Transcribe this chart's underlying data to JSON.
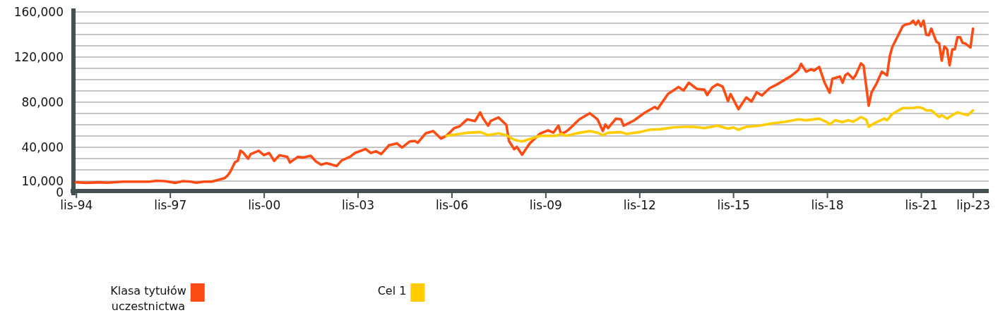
{
  "chart_data": {
    "type": "line",
    "xlim": [
      "1994-10",
      "2024-01"
    ],
    "ylim": [
      0,
      160000
    ],
    "xticks": [
      {
        "value": "1994-11",
        "label": "lis-94"
      },
      {
        "value": "1997-11",
        "label": "lis-97"
      },
      {
        "value": "2000-11",
        "label": "lis-00"
      },
      {
        "value": "2003-11",
        "label": "lis-03"
      },
      {
        "value": "2006-11",
        "label": "lis-06"
      },
      {
        "value": "2009-11",
        "label": "lis-09"
      },
      {
        "value": "2012-11",
        "label": "lis-12"
      },
      {
        "value": "2015-11",
        "label": "lis-15"
      },
      {
        "value": "2018-11",
        "label": "lis-18"
      },
      {
        "value": "2021-11",
        "label": "lis-21"
      },
      {
        "value": "2023-07",
        "label": "lip-23"
      }
    ],
    "yticks": [
      0,
      {
        "value": 10000,
        "label": "10,000"
      },
      {
        "value": 20000,
        "label": null
      },
      {
        "value": 30000,
        "label": null
      },
      {
        "value": 40000,
        "label": "40,000"
      },
      {
        "value": 50000,
        "label": null
      },
      {
        "value": 60000,
        "label": null
      },
      {
        "value": 70000,
        "label": null
      },
      {
        "value": 80000,
        "label": "80,000"
      },
      {
        "value": 90000,
        "label": null
      },
      {
        "value": 100000,
        "label": null
      },
      {
        "value": 110000,
        "label": null
      },
      {
        "value": 120000,
        "label": "120,000"
      },
      {
        "value": 130000,
        "label": null
      },
      {
        "value": 140000,
        "label": null
      },
      {
        "value": 150000,
        "label": null
      },
      {
        "value": 160000,
        "label": "160,000"
      }
    ],
    "grid": "y",
    "legend": "bottom",
    "line_style": "solid",
    "marker": "none",
    "series": [
      {
        "name": "Klasa tytułów uczestnictwa",
        "color": "#fc4c14",
        "x": [
          "1994-11",
          "1995-03",
          "1995-08",
          "1995-11",
          "1996-05",
          "1997-03",
          "1997-06",
          "1997-09",
          "1998-01",
          "1998-04",
          "1998-07",
          "1998-09",
          "1998-12",
          "1999-03",
          "1999-08",
          "1999-09",
          "1999-10",
          "1999-12",
          "2000-01",
          "2000-02",
          "2000-03",
          "2000-05",
          "2000-06",
          "2000-09",
          "2000-11",
          "2001-01",
          "2001-03",
          "2001-05",
          "2001-08",
          "2001-09",
          "2001-12",
          "2002-02",
          "2002-05",
          "2002-07",
          "2002-09",
          "2002-11",
          "2003-03",
          "2003-05",
          "2003-08",
          "2003-10",
          "2004-02",
          "2004-04",
          "2004-06",
          "2004-08",
          "2004-11",
          "2005-02",
          "2005-04",
          "2005-07",
          "2005-09",
          "2005-10",
          "2006-01",
          "2006-04",
          "2006-06",
          "2006-07",
          "2006-09",
          "2006-12",
          "2007-02",
          "2007-05",
          "2007-08",
          "2007-10",
          "2007-11",
          "2008-01",
          "2008-02",
          "2008-05",
          "2008-08",
          "2008-09",
          "2008-11",
          "2008-12",
          "2009-02",
          "2009-05",
          "2009-09",
          "2009-12",
          "2010-02",
          "2010-04",
          "2010-05",
          "2010-07",
          "2010-09",
          "2010-12",
          "2011-04",
          "2011-07",
          "2011-09",
          "2011-10",
          "2011-11",
          "2012-02",
          "2012-04",
          "2012-05",
          "2012-09",
          "2013-01",
          "2013-05",
          "2013-06",
          "2013-10",
          "2014-02",
          "2014-04",
          "2014-06",
          "2014-09",
          "2014-12",
          "2015-01",
          "2015-03",
          "2015-05",
          "2015-07",
          "2015-09",
          "2015-10",
          "2016-01",
          "2016-04",
          "2016-06",
          "2016-08",
          "2016-10",
          "2017-01",
          "2017-04",
          "2017-07",
          "2017-09",
          "2017-12",
          "2018-01",
          "2018-03",
          "2018-05",
          "2018-06",
          "2018-08",
          "2018-10",
          "2018-12",
          "2019-01",
          "2019-04",
          "2019-05",
          "2019-06",
          "2019-07",
          "2019-09",
          "2019-10",
          "2019-12",
          "2020-01",
          "2020-03",
          "2020-04",
          "2020-06",
          "2020-08",
          "2020-10",
          "2020-11",
          "2020-12",
          "2021-02",
          "2021-04",
          "2021-05",
          "2021-07",
          "2021-08",
          "2021-09",
          "2021-10",
          "2021-11",
          "2021-12",
          "2022-01",
          "2022-02",
          "2022-03",
          "2022-05",
          "2022-06",
          "2022-07",
          "2022-08",
          "2022-09",
          "2022-10",
          "2022-11",
          "2022-12",
          "2023-01",
          "2023-02",
          "2023-03",
          "2023-04",
          "2023-06",
          "2023-07"
        ],
        "values": [
          9000,
          8500,
          9000,
          8600,
          9500,
          9500,
          10300,
          10000,
          8500,
          10000,
          9500,
          8600,
          9500,
          9600,
          12700,
          14700,
          17700,
          27000,
          28000,
          37000,
          35500,
          30000,
          34000,
          37000,
          33000,
          35000,
          28000,
          33000,
          31500,
          26500,
          31500,
          31000,
          32500,
          27500,
          24500,
          26000,
          23500,
          28500,
          31500,
          35000,
          38500,
          35000,
          36500,
          34000,
          41900,
          43500,
          39800,
          45200,
          45600,
          44000,
          52300,
          54400,
          49800,
          47700,
          50200,
          57000,
          58500,
          64800,
          63300,
          71000,
          66000,
          59200,
          63300,
          66500,
          59800,
          45600,
          38300,
          40400,
          33500,
          43500,
          52300,
          55000,
          53000,
          59200,
          51900,
          54000,
          58100,
          64800,
          70200,
          64800,
          54400,
          60200,
          57000,
          65400,
          64800,
          59200,
          63900,
          70600,
          75800,
          74000,
          87300,
          93500,
          90400,
          97300,
          91900,
          91000,
          86300,
          92900,
          96000,
          93800,
          81000,
          87300,
          73800,
          84200,
          80600,
          88800,
          86000,
          92500,
          96000,
          100200,
          102900,
          108500,
          114000,
          107100,
          109200,
          108000,
          111300,
          97700,
          88300,
          100800,
          102800,
          97300,
          103800,
          105600,
          100800,
          104000,
          114400,
          112300,
          76900,
          88300,
          96700,
          107100,
          103800,
          120600,
          128900,
          138300,
          147300,
          148800,
          149800,
          152300,
          148800,
          152300,
          147300,
          152300,
          139800,
          139400,
          145200,
          133500,
          132100,
          116900,
          129400,
          127000,
          112700,
          126900,
          126900,
          137700,
          137700,
          132700,
          132100,
          128500,
          145200
        ]
      },
      {
        "name": "Cel 1",
        "color": "#ffcc00",
        "x": [
          "2006-09",
          "2007-05",
          "2007-10",
          "2008-01",
          "2008-05",
          "2008-08",
          "2008-11",
          "2009-02",
          "2009-06",
          "2009-09",
          "2010-03",
          "2010-05",
          "2010-07",
          "2010-12",
          "2011-04",
          "2011-07",
          "2011-09",
          "2011-11",
          "2012-04",
          "2012-06",
          "2012-11",
          "2013-03",
          "2013-07",
          "2013-12",
          "2014-04",
          "2014-08",
          "2014-12",
          "2015-05",
          "2015-09",
          "2015-11",
          "2016-01",
          "2016-04",
          "2016-09",
          "2017-02",
          "2017-07",
          "2017-12",
          "2018-03",
          "2018-08",
          "2018-11",
          "2018-12",
          "2019-02",
          "2019-05",
          "2019-07",
          "2019-09",
          "2019-12",
          "2020-02",
          "2020-03",
          "2020-05",
          "2020-08",
          "2020-09",
          "2020-10",
          "2020-12",
          "2021-04",
          "2021-08",
          "2021-10",
          "2021-12",
          "2022-01",
          "2022-03",
          "2022-06",
          "2022-07",
          "2022-09",
          "2022-11",
          "2023-01",
          "2023-05",
          "2023-07"
        ],
        "values": [
          50200,
          52900,
          53500,
          50800,
          52300,
          50800,
          46700,
          45200,
          48100,
          50200,
          50200,
          51900,
          50200,
          52900,
          54400,
          52900,
          50800,
          52900,
          53500,
          51900,
          53500,
          55600,
          56000,
          57700,
          58100,
          58100,
          57000,
          59200,
          56500,
          57700,
          55600,
          58100,
          59200,
          61300,
          62700,
          64800,
          64000,
          65400,
          62300,
          60200,
          64000,
          62300,
          64000,
          62700,
          66900,
          64400,
          58100,
          61200,
          64400,
          65400,
          64000,
          69600,
          74800,
          74800,
          75600,
          74400,
          72700,
          72700,
          66900,
          68500,
          65400,
          68500,
          71000,
          68500,
          72700
        ]
      }
    ]
  }
}
